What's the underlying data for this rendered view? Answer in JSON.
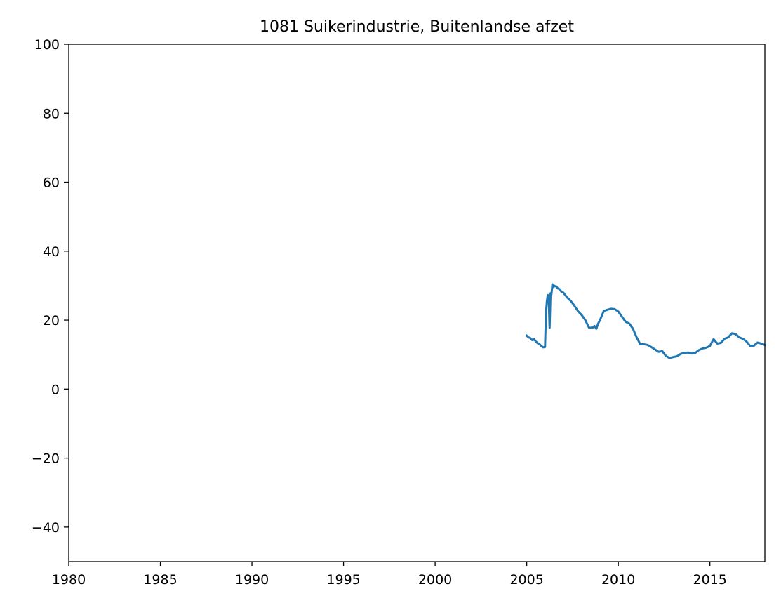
{
  "chart_data": {
    "type": "line",
    "title": "1081 Suikerindustrie, Buitenlandse afzet",
    "xlabel": "",
    "ylabel": "",
    "xlim": [
      1980,
      2018
    ],
    "ylim": [
      -50,
      100
    ],
    "x_ticks": [
      1980,
      1985,
      1990,
      1995,
      2000,
      2005,
      2010,
      2015
    ],
    "x_tick_labels": [
      "1980",
      "1985",
      "1990",
      "1995",
      "2000",
      "2005",
      "2010",
      "2015"
    ],
    "y_ticks": [
      -40,
      -20,
      0,
      20,
      40,
      60,
      80,
      100
    ],
    "y_tick_labels": [
      "−40",
      "−20",
      "0",
      "20",
      "40",
      "60",
      "80",
      "100"
    ],
    "grid": false,
    "line_color": "#1f77b4",
    "series": [
      {
        "x": [
          2005.0,
          2005.1,
          2005.2,
          2005.3,
          2005.4,
          2005.5,
          2005.6,
          2005.7,
          2005.8,
          2005.9,
          2006.0,
          2006.05,
          2006.1,
          2006.15,
          2006.2,
          2006.25,
          2006.3,
          2006.35,
          2006.4,
          2006.45,
          2006.5,
          2006.55,
          2006.6,
          2006.7,
          2006.8,
          2006.9,
          2007.0,
          2007.2,
          2007.4,
          2007.6,
          2007.8,
          2008.0,
          2008.2,
          2008.4,
          2008.6,
          2008.7,
          2008.8,
          2008.9,
          2009.0,
          2009.2,
          2009.4,
          2009.6,
          2009.8,
          2010.0,
          2010.2,
          2010.4,
          2010.6,
          2010.8,
          2011.0,
          2011.2,
          2011.4,
          2011.6,
          2011.8,
          2012.0,
          2012.2,
          2012.4,
          2012.6,
          2012.8,
          2013.0,
          2013.2,
          2013.4,
          2013.6,
          2013.8,
          2014.0,
          2014.2,
          2014.4,
          2014.6,
          2014.8,
          2015.0,
          2015.2,
          2015.4,
          2015.6,
          2015.8,
          2016.0,
          2016.2,
          2016.4,
          2016.6,
          2016.8,
          2017.0,
          2017.2,
          2017.4,
          2017.6,
          2017.8,
          2018.0
        ],
        "values": [
          15.5,
          15.0,
          14.8,
          14.2,
          14.5,
          13.8,
          13.3,
          13.0,
          12.5,
          12.1,
          12.2,
          22.0,
          25.5,
          27.3,
          26.0,
          17.8,
          27.8,
          27.5,
          30.4,
          29.6,
          30.0,
          29.8,
          29.8,
          29.2,
          29.0,
          28.2,
          28.0,
          26.6,
          25.6,
          24.2,
          22.6,
          21.5,
          20.0,
          17.8,
          17.8,
          18.3,
          17.5,
          19.0,
          20.0,
          22.6,
          23.0,
          23.3,
          23.2,
          22.5,
          21.0,
          19.5,
          19.0,
          17.5,
          15.0,
          13.0,
          13.0,
          12.8,
          12.2,
          11.5,
          10.8,
          11.0,
          9.6,
          9.0,
          9.3,
          9.5,
          10.2,
          10.5,
          10.6,
          10.3,
          10.5,
          11.3,
          11.8,
          12.0,
          12.5,
          14.5,
          13.2,
          13.4,
          14.6,
          15.0,
          16.2,
          16.0,
          15.0,
          14.6,
          13.8,
          12.5,
          12.6,
          13.5,
          13.2,
          12.8
        ]
      }
    ]
  }
}
